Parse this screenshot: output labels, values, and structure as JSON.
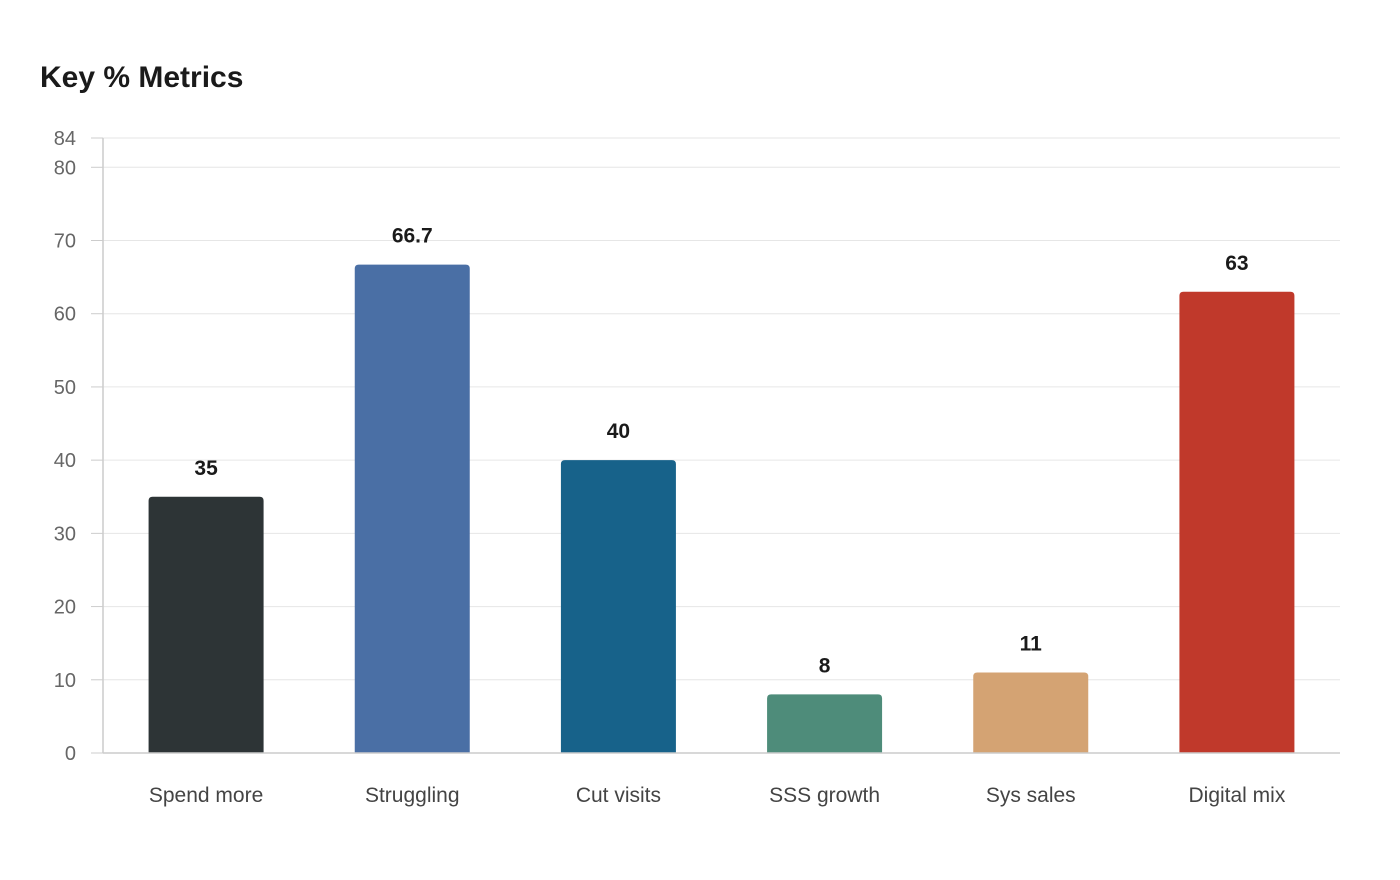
{
  "chart_data": {
    "type": "bar",
    "title": "Key % Metrics",
    "xlabel": "",
    "ylabel": "",
    "categories": [
      "Spend more",
      "Struggling",
      "Cut visits",
      "SSS growth",
      "Sys sales",
      "Digital mix"
    ],
    "values": [
      35,
      66.7,
      40,
      8,
      11,
      63
    ],
    "value_labels": [
      "35",
      "66.7",
      "40",
      "8",
      "11",
      "63"
    ],
    "colors": [
      "#2d3436",
      "#4a6fa5",
      "#17628a",
      "#4e8c7a",
      "#d4a373",
      "#c0392b"
    ],
    "ylim": [
      0,
      84
    ],
    "yticks": [
      0,
      10,
      20,
      30,
      40,
      50,
      60,
      70,
      80,
      84
    ],
    "grid": true,
    "legend": "none"
  }
}
